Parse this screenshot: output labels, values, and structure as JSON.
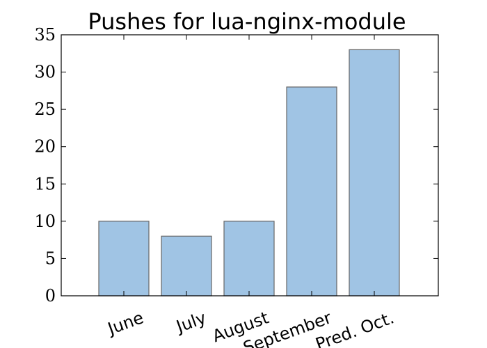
{
  "chart_data": {
    "type": "bar",
    "title": "Pushes for lua-nginx-module",
    "xlabel": "",
    "ylabel": "",
    "categories": [
      "June",
      "July",
      "August",
      "September",
      "Pred. Oct."
    ],
    "values": [
      10,
      8,
      10,
      28,
      33
    ],
    "ylim": [
      0,
      35
    ],
    "yticks": [
      0,
      5,
      10,
      15,
      20,
      25,
      30,
      35
    ],
    "grid": false,
    "bar_color": "#a0c4e4",
    "bar_edge_color": "#666666"
  }
}
